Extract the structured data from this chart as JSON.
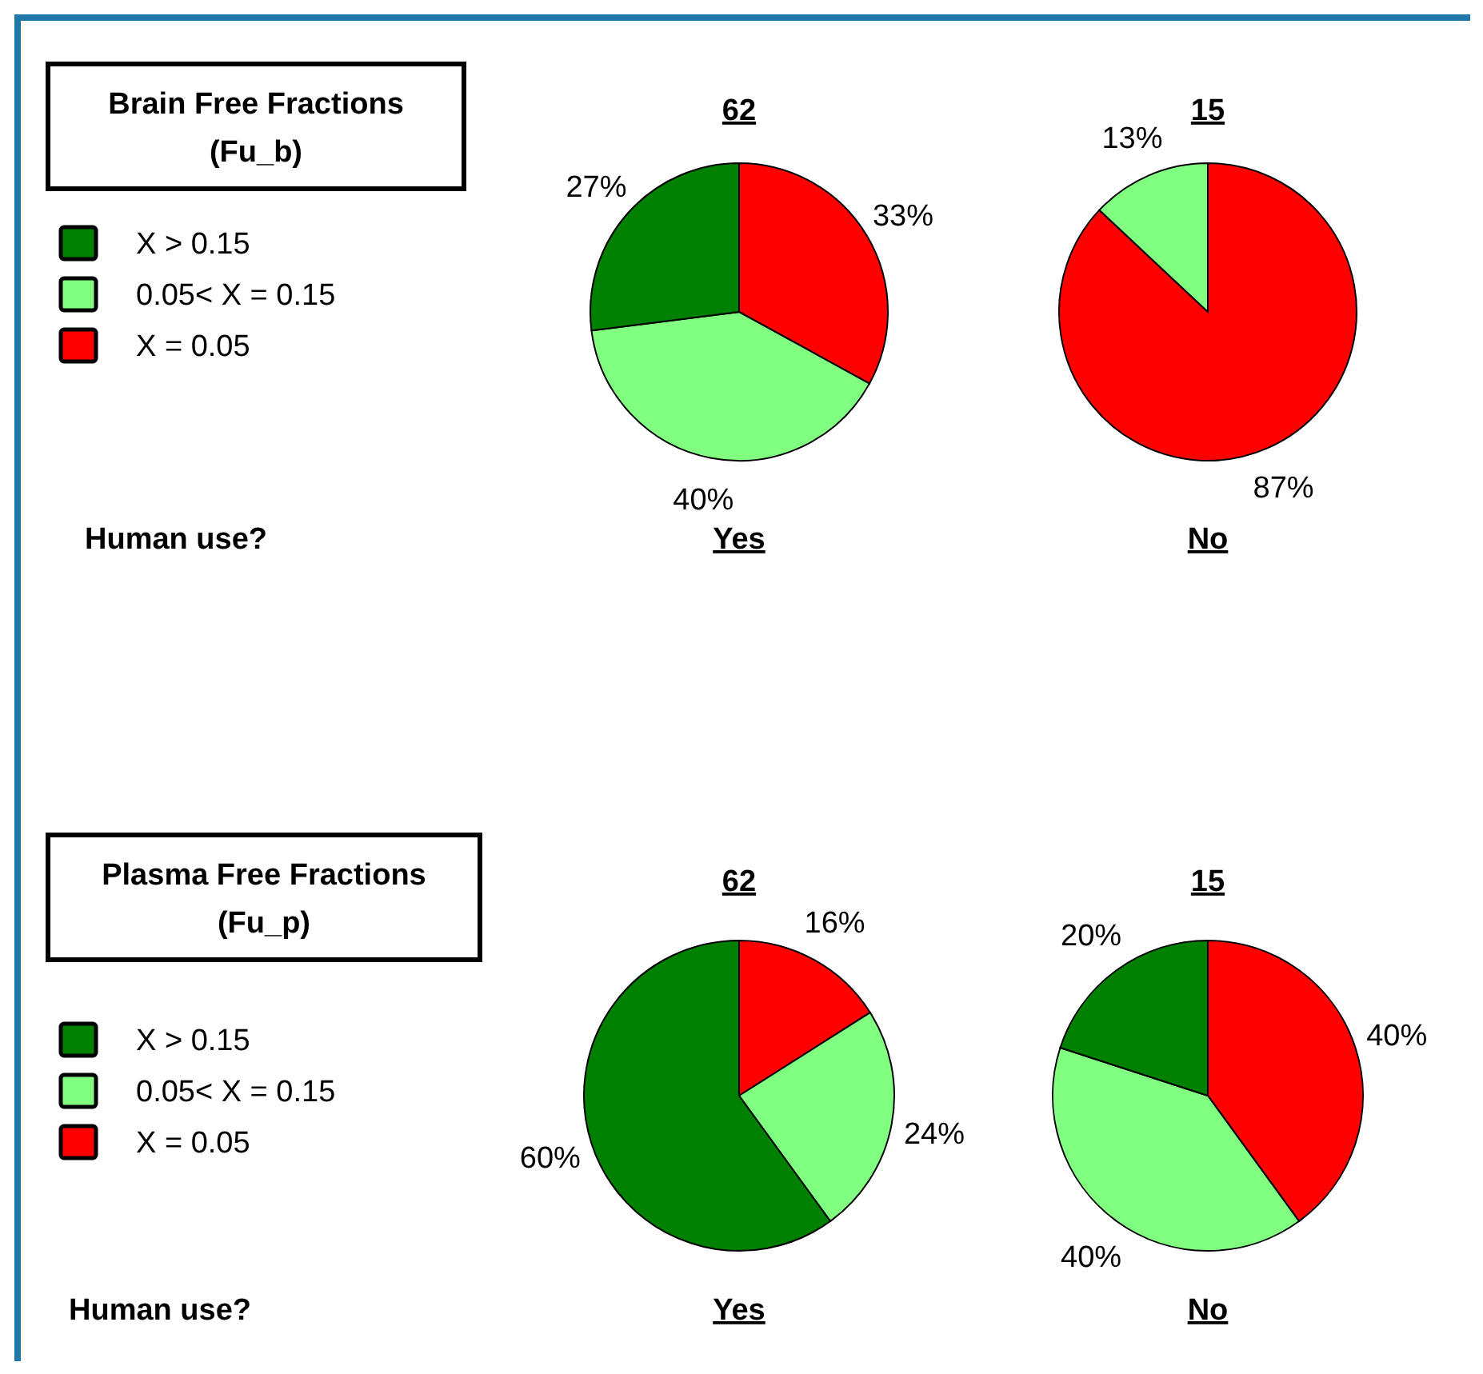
{
  "chart_data": [
    {
      "type": "pie",
      "title": "62",
      "xlabel": "Yes",
      "legend_title": "Brain Free Fractions\n(Fu_b)",
      "legend": "left",
      "annotations": [
        "Human use?"
      ],
      "categories": [
        "X > 0.15",
        "0.05< X = 0.15",
        "X = 0.05"
      ],
      "values": [
        27,
        40,
        33
      ],
      "colors": [
        "#008000",
        "#80ff80",
        "#ff0000"
      ],
      "value_labels": [
        "27%",
        "40%",
        "33%"
      ]
    },
    {
      "type": "pie",
      "title": "15",
      "xlabel": "No",
      "categories": [
        null,
        null
      ],
      "values": [
        13,
        87
      ],
      "colors": [
        "#80ff80",
        "#ff0000"
      ],
      "value_labels": [
        "13%",
        "87%"
      ]
    },
    {
      "type": "pie",
      "title": "62",
      "xlabel": "Yes",
      "legend_title": "Plasma Free Fractions\n(Fu_p)",
      "legend": "left",
      "annotations": [
        "Human use?"
      ],
      "categories": [
        "X > 0.15",
        "0.05< X = 0.15",
        "X = 0.05"
      ],
      "values": [
        60,
        24,
        16
      ],
      "colors": [
        "#008000",
        "#80ff80",
        "#ff0000"
      ],
      "value_labels": [
        "60%",
        "24%",
        "16%"
      ]
    },
    {
      "type": "pie",
      "title": "15",
      "xlabel": "No",
      "categories": [
        null,
        null,
        null
      ],
      "values": [
        20,
        40,
        40
      ],
      "colors": [
        "#008000",
        "#80ff80",
        "#ff0000"
      ],
      "value_labels": [
        "20%",
        "40%",
        "40%"
      ]
    }
  ]
}
